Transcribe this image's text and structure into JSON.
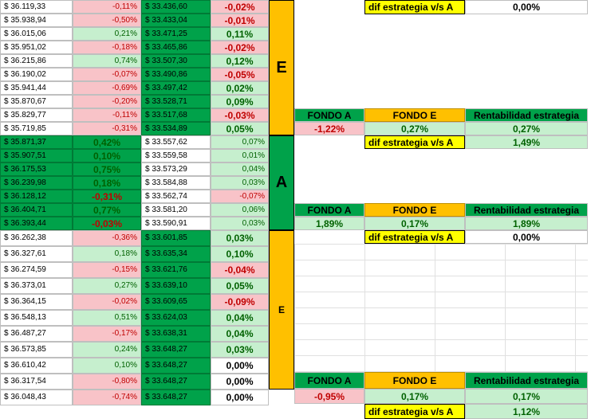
{
  "rows": [
    {
      "c1": "$ 36.119,33",
      "c2": "-0,11%",
      "c3": "$ 33.436,60",
      "c4": "-0,02%"
    },
    {
      "c1": "$ 35.938,94",
      "c2": "-0,50%",
      "c3": "$ 33.433,04",
      "c4": "-0,01%"
    },
    {
      "c1": "$ 36.015,06",
      "c2": "0,21%",
      "c3": "$ 33.471,25",
      "c4": "0,11%"
    },
    {
      "c1": "$ 35.951,02",
      "c2": "-0,18%",
      "c3": "$ 33.465,86",
      "c4": "-0,02%"
    },
    {
      "c1": "$ 36.215,86",
      "c2": "0,74%",
      "c3": "$ 33.507,30",
      "c4": "0,12%"
    },
    {
      "c1": "$ 36.190,02",
      "c2": "-0,07%",
      "c3": "$ 33.490,86",
      "c4": "-0,05%"
    },
    {
      "c1": "$ 35.941,44",
      "c2": "-0,69%",
      "c3": "$ 33.497,42",
      "c4": "0,02%"
    },
    {
      "c1": "$ 35.870,67",
      "c2": "-0,20%",
      "c3": "$ 33.528,71",
      "c4": "0,09%"
    },
    {
      "c1": "$ 35.829,77",
      "c2": "-0,11%",
      "c3": "$ 33.517,68",
      "c4": "-0,03%"
    },
    {
      "c1": "$ 35.719,85",
      "c2": "-0,31%",
      "c3": "$ 33.534,89",
      "c4": "0,05%"
    },
    {
      "c1": "$ 35.871,37",
      "c2": "0,42%",
      "c3": "$ 33.557,62",
      "c4": "0,07%"
    },
    {
      "c1": "$ 35.907,51",
      "c2": "0,10%",
      "c3": "$ 33.559,58",
      "c4": "0,01%"
    },
    {
      "c1": "$ 36.175,53",
      "c2": "0,75%",
      "c3": "$ 33.573,29",
      "c4": "0,04%"
    },
    {
      "c1": "$ 36.239,98",
      "c2": "0,18%",
      "c3": "$ 33.584,88",
      "c4": "0,03%"
    },
    {
      "c1": "$ 36.128,12",
      "c2": "-0,31%",
      "c3": "$ 33.562,74",
      "c4": "-0,07%"
    },
    {
      "c1": "$ 36.404,71",
      "c2": "0,77%",
      "c3": "$ 33.581,20",
      "c4": "0,06%"
    },
    {
      "c1": "$ 36.393,44",
      "c2": "-0,03%",
      "c3": "$ 33.590,91",
      "c4": "0,03%"
    },
    {
      "c1": "$ 36.262,38",
      "c2": "-0,36%",
      "c3": "$ 33.601,85",
      "c4": "0,03%"
    },
    {
      "c1": "$ 36.327,61",
      "c2": "0,18%",
      "c3": "$ 33.635,34",
      "c4": "0,10%"
    },
    {
      "c1": "$ 36.274,59",
      "c2": "-0,15%",
      "c3": "$ 33.621,76",
      "c4": "-0,04%"
    },
    {
      "c1": "$ 36.373,01",
      "c2": "0,27%",
      "c3": "$ 33.639,10",
      "c4": "0,05%"
    },
    {
      "c1": "$ 36.364,15",
      "c2": "-0,02%",
      "c3": "$ 33.609,65",
      "c4": "-0,09%"
    },
    {
      "c1": "$ 36.548,13",
      "c2": "0,51%",
      "c3": "$ 33.624,03",
      "c4": "0,04%"
    },
    {
      "c1": "$ 36.487,27",
      "c2": "-0,17%",
      "c3": "$ 33.638,31",
      "c4": "0,04%"
    },
    {
      "c1": "$ 36.573,85",
      "c2": "0,24%",
      "c3": "$ 33.648,27",
      "c4": "0,03%"
    },
    {
      "c1": "$ 36.610,42",
      "c2": "0,10%",
      "c3": "$ 33.648,27",
      "c4": "0,00%"
    },
    {
      "c1": "$ 36.317,54",
      "c2": "-0,80%",
      "c3": "$ 33.648,27",
      "c4": "0,00%"
    },
    {
      "c1": "$ 36.048,43",
      "c2": "-0,74%",
      "c3": "$ 33.648,27",
      "c4": "0,00%"
    }
  ],
  "groups": [
    {
      "letter": "E"
    },
    {
      "letter": "A"
    },
    {
      "letter": "E"
    }
  ],
  "summary": {
    "header_fondo_a": "FONDO A",
    "header_fondo_e": "FONDO E",
    "header_rent": "Rentabilidad estrategia",
    "dif_label": "dif estrategia v/s A",
    "top_dif": "0,00%",
    "blocks": [
      {
        "fondo_a": "-1,22%",
        "fondo_e": "0,27%",
        "rent": "0,27%",
        "dif": "1,49%"
      },
      {
        "fondo_a": "1,89%",
        "fondo_e": "0,17%",
        "rent": "1,89%",
        "dif": "0,00%"
      },
      {
        "fondo_a": "-0,95%",
        "fondo_e": "0,17%",
        "rent": "0,17%",
        "dif": "1,12%"
      }
    ]
  }
}
